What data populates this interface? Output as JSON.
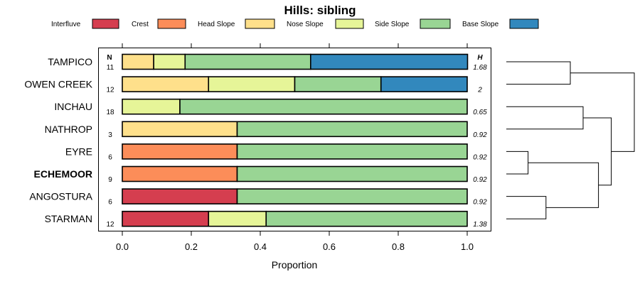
{
  "chart_data": {
    "type": "bar",
    "stacked": true,
    "orientation": "horizontal",
    "title": "Hills: sibling",
    "xlabel": "Proportion",
    "ylabel": "",
    "xlim": [
      0,
      1
    ],
    "xticks": [
      0,
      0.2,
      0.4,
      0.6,
      0.8,
      1.0
    ],
    "xtick_labels": [
      "0.0",
      "0.2",
      "0.4",
      "0.6",
      "0.8",
      "1.0"
    ],
    "legend_position": "top",
    "legend": [
      {
        "name": "Interfluve",
        "color": "#D53E4F"
      },
      {
        "name": "Crest",
        "color": "#FC8D59"
      },
      {
        "name": "Head Slope",
        "color": "#FEE08B"
      },
      {
        "name": "Nose Slope",
        "color": "#E6F598"
      },
      {
        "name": "Side Slope",
        "color": "#99D594"
      },
      {
        "name": "Base Slope",
        "color": "#3288BD"
      }
    ],
    "n_header": "N",
    "h_header": "H",
    "categories": [
      "TAMPICO",
      "OWEN CREEK",
      "INCHAU",
      "NATHROP",
      "EYRE",
      "ECHEMOOR",
      "ANGOSTURA",
      "STARMAN"
    ],
    "highlight": "ECHEMOOR",
    "n": [
      "11",
      "12",
      "18",
      "3",
      "6",
      "9",
      "6",
      "12"
    ],
    "h": [
      "1.68",
      "2",
      "0.65",
      "0.92",
      "0.92",
      "0.92",
      "0.92",
      "1.38"
    ],
    "series": [
      {
        "name": "Interfluve",
        "values": [
          0,
          0,
          0,
          0,
          0,
          0,
          0.333,
          0.25
        ]
      },
      {
        "name": "Crest",
        "values": [
          0,
          0,
          0,
          0,
          0.333,
          0.333,
          0,
          0
        ]
      },
      {
        "name": "Head Slope",
        "values": [
          0.091,
          0.25,
          0,
          0.333,
          0,
          0,
          0,
          0
        ]
      },
      {
        "name": "Nose Slope",
        "values": [
          0.091,
          0.25,
          0.167,
          0,
          0,
          0,
          0,
          0.167
        ]
      },
      {
        "name": "Side Slope",
        "values": [
          0.364,
          0.25,
          0.833,
          0.667,
          0.667,
          0.667,
          0.667,
          0.583
        ]
      },
      {
        "name": "Base Slope",
        "values": [
          0.455,
          0.25,
          0,
          0,
          0,
          0,
          0,
          0
        ]
      }
    ],
    "dendrogram": {
      "type": "hierarchical-clustering",
      "merges": [
        {
          "id": "m1",
          "children": [
            "TAMPICO",
            "OWEN CREEK"
          ],
          "height": 0.5
        },
        {
          "id": "m2",
          "children": [
            "INCHAU",
            "NATHROP"
          ],
          "height": 0.6
        },
        {
          "id": "m3",
          "children": [
            "EYRE",
            "ECHEMOOR"
          ],
          "height": 0.17
        },
        {
          "id": "m4",
          "children": [
            "ANGOSTURA",
            "STARMAN"
          ],
          "height": 0.31
        },
        {
          "id": "m5",
          "children": [
            "m3",
            "m4"
          ],
          "height": 0.72
        },
        {
          "id": "m6",
          "children": [
            "m2",
            "m5"
          ],
          "height": 0.82
        },
        {
          "id": "m7",
          "children": [
            "m1",
            "m6"
          ],
          "height": 1.0
        }
      ]
    }
  }
}
